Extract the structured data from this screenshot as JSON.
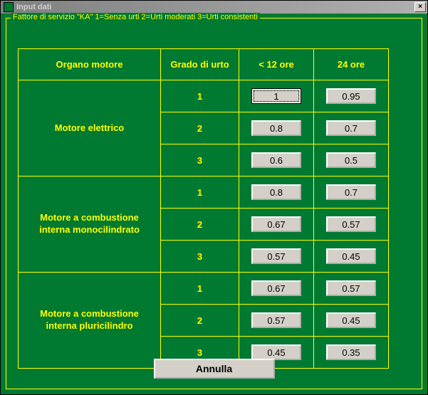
{
  "window": {
    "title": "Input   dati",
    "close_glyph": "×"
  },
  "groupbox": {
    "label": "Fattore di servizio \"KA\"  1=Senza urti 2=Urti moderati 3=Urti consistenti"
  },
  "table": {
    "headers": {
      "organ": "Organo motore",
      "grade": "Grado di urto",
      "lt12": "< 12 ore",
      "h24": "24 ore"
    },
    "groups": [
      {
        "organ": "Motore elettrico",
        "rows": [
          {
            "grade": "1",
            "lt12": "1",
            "h24": "0.95",
            "lt12_selected": true
          },
          {
            "grade": "2",
            "lt12": "0.8",
            "h24": "0.7"
          },
          {
            "grade": "3",
            "lt12": "0.6",
            "h24": "0.5"
          }
        ]
      },
      {
        "organ": "Motore a combustione interna monocilindrato",
        "rows": [
          {
            "grade": "1",
            "lt12": "0.8",
            "h24": "0.7"
          },
          {
            "grade": "2",
            "lt12": "0.67",
            "h24": "0.57"
          },
          {
            "grade": "3",
            "lt12": "0.57",
            "h24": "0.45"
          }
        ]
      },
      {
        "organ": "Motore a combustione interna pluricilindro",
        "rows": [
          {
            "grade": "1",
            "lt12": "0.67",
            "h24": "0.57"
          },
          {
            "grade": "2",
            "lt12": "0.57",
            "h24": "0.45"
          },
          {
            "grade": "3",
            "lt12": "0.45",
            "h24": "0.35"
          }
        ]
      }
    ]
  },
  "buttons": {
    "cancel": "Annulla"
  },
  "style": {
    "bg_color": "#007a31",
    "line_color": "#ffff00",
    "text_color": "#ffff00",
    "button_face": "#d4d0c8"
  }
}
